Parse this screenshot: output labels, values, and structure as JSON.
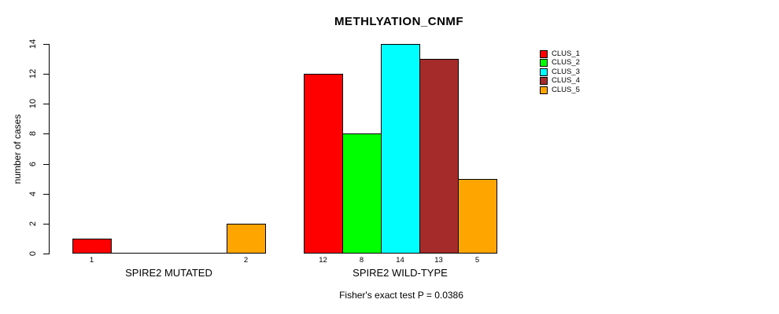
{
  "chart_data": {
    "type": "bar",
    "title": "METHLYATION_CNMF",
    "ylabel": "number of cases",
    "xlabel": "",
    "subtitle": "Fisher's exact test P = 0.0386",
    "ylim": [
      0,
      14
    ],
    "yticks": [
      0,
      2,
      4,
      6,
      8,
      10,
      12,
      14
    ],
    "series_names": [
      "CLUS_1",
      "CLUS_2",
      "CLUS_3",
      "CLUS_4",
      "CLUS_5"
    ],
    "series_colors": [
      "#FF0000",
      "#00FF00",
      "#00FFFF",
      "#A52A2A",
      "#FFA500"
    ],
    "groups": [
      {
        "label": "SPIRE2 MUTATED",
        "values": [
          1,
          0,
          0,
          0,
          2
        ],
        "bar_labels": [
          "1",
          "",
          "",
          "",
          "2"
        ]
      },
      {
        "label": "SPIRE2 WILD-TYPE",
        "values": [
          12,
          8,
          14,
          13,
          5
        ],
        "bar_labels": [
          "12",
          "8",
          "14",
          "13",
          "5"
        ]
      }
    ],
    "legend_position": "right",
    "grid": false,
    "background_color": "#FFFFFF",
    "axis_color": "#000000"
  }
}
